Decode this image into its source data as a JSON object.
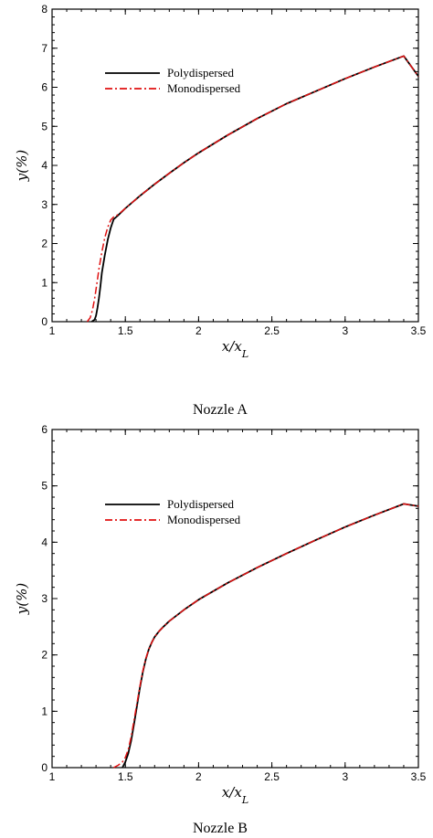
{
  "panels": [
    {
      "caption": "Nozzle A"
    },
    {
      "caption": "Nozzle B"
    }
  ],
  "chart_data": [
    {
      "type": "line",
      "title": "",
      "xlabel": "x/x_L",
      "ylabel": "y(%)",
      "xlim": [
        1,
        3.5
      ],
      "ylim": [
        0,
        8
      ],
      "xticks": [
        1,
        1.5,
        2,
        2.5,
        3,
        3.5
      ],
      "xtick_labels": [
        "1",
        "1.5",
        "2",
        "2.5",
        "3",
        "3.5"
      ],
      "yticks": [
        0,
        1,
        2,
        3,
        4,
        5,
        6,
        7,
        8
      ],
      "ytick_labels": [
        "0",
        "1",
        "2",
        "3",
        "4",
        "5",
        "6",
        "7",
        "8"
      ],
      "grid": false,
      "legend_position": "upper-left",
      "series": [
        {
          "name": "Polydispersed",
          "color": "#000000",
          "style": "solid",
          "x": [
            1.27,
            1.29,
            1.3,
            1.31,
            1.32,
            1.33,
            1.34,
            1.36,
            1.38,
            1.4,
            1.42,
            1.45,
            1.5,
            1.6,
            1.7,
            1.8,
            1.9,
            2.0,
            2.2,
            2.4,
            2.6,
            2.8,
            3.0,
            3.2,
            3.4,
            3.5
          ],
          "y": [
            0,
            0.05,
            0.15,
            0.35,
            0.6,
            0.9,
            1.25,
            1.7,
            2.1,
            2.4,
            2.62,
            2.72,
            2.9,
            3.22,
            3.52,
            3.8,
            4.07,
            4.32,
            4.78,
            5.2,
            5.58,
            5.9,
            6.22,
            6.52,
            6.8,
            6.28
          ]
        },
        {
          "name": "Monodispersed",
          "color": "#e01010",
          "style": "dashdot",
          "x": [
            1.24,
            1.26,
            1.27,
            1.28,
            1.29,
            1.3,
            1.31,
            1.32,
            1.34,
            1.36,
            1.38,
            1.4,
            1.42,
            1.45,
            1.5,
            1.6,
            1.7,
            1.8,
            1.9,
            2.0,
            2.2,
            2.4,
            2.6,
            2.8,
            3.0,
            3.2,
            3.4,
            3.5
          ],
          "y": [
            0,
            0.1,
            0.22,
            0.38,
            0.58,
            0.82,
            1.08,
            1.35,
            1.78,
            2.15,
            2.42,
            2.6,
            2.68,
            2.74,
            2.9,
            3.22,
            3.52,
            3.8,
            4.07,
            4.32,
            4.78,
            5.2,
            5.58,
            5.9,
            6.22,
            6.52,
            6.8,
            6.28
          ]
        }
      ]
    },
    {
      "type": "line",
      "title": "",
      "xlabel": "x/x_L",
      "ylabel": "y(%)",
      "xlim": [
        1,
        3.5
      ],
      "ylim": [
        0,
        6
      ],
      "xticks": [
        1,
        1.5,
        2,
        2.5,
        3,
        3.5
      ],
      "xtick_labels": [
        "1",
        "1.5",
        "2",
        "2.5",
        "3",
        "3.5"
      ],
      "yticks": [
        0,
        1,
        2,
        3,
        4,
        5,
        6
      ],
      "ytick_labels": [
        "0",
        "1",
        "2",
        "3",
        "4",
        "5",
        "6"
      ],
      "grid": false,
      "legend_position": "upper-left",
      "series": [
        {
          "name": "Polydispersed",
          "color": "#000000",
          "style": "solid",
          "x": [
            1.48,
            1.5,
            1.52,
            1.54,
            1.56,
            1.58,
            1.6,
            1.62,
            1.64,
            1.66,
            1.68,
            1.7,
            1.73,
            1.76,
            1.8,
            1.9,
            2.0,
            2.2,
            2.4,
            2.6,
            2.8,
            3.0,
            3.2,
            3.4,
            3.5
          ],
          "y": [
            0,
            0.1,
            0.25,
            0.48,
            0.78,
            1.1,
            1.42,
            1.7,
            1.93,
            2.1,
            2.22,
            2.32,
            2.42,
            2.5,
            2.6,
            2.8,
            2.98,
            3.28,
            3.55,
            3.8,
            4.04,
            4.27,
            4.48,
            4.68,
            4.64
          ]
        },
        {
          "name": "Monodispersed",
          "color": "#e01010",
          "style": "dashdot",
          "x": [
            1.42,
            1.45,
            1.48,
            1.5,
            1.52,
            1.54,
            1.56,
            1.58,
            1.6,
            1.62,
            1.64,
            1.66,
            1.68,
            1.7,
            1.73,
            1.76,
            1.8,
            1.9,
            2.0,
            2.2,
            2.4,
            2.6,
            2.8,
            3.0,
            3.2,
            3.4,
            3.5
          ],
          "y": [
            0,
            0.04,
            0.1,
            0.18,
            0.32,
            0.55,
            0.85,
            1.15,
            1.45,
            1.72,
            1.94,
            2.1,
            2.22,
            2.32,
            2.42,
            2.5,
            2.6,
            2.8,
            2.98,
            3.28,
            3.55,
            3.8,
            4.04,
            4.27,
            4.48,
            4.68,
            4.64
          ]
        }
      ]
    }
  ]
}
